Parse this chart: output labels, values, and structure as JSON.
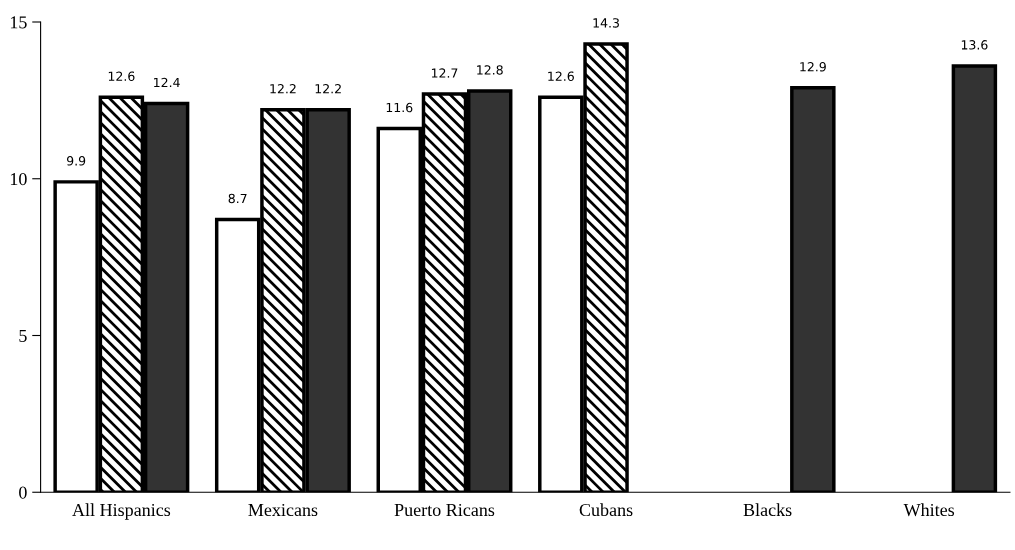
{
  "chart_data": {
    "type": "bar",
    "categories": [
      "All Hispanics",
      "Mexicans",
      "Puerto Ricans",
      "Cubans",
      "Blacks",
      "Whites"
    ],
    "series": [
      {
        "color": "#ffffff",
        "values": [
          9.9,
          8.7,
          11.6,
          12.6,
          null,
          null
        ]
      },
      {
        "color": "#000000",
        "values": [
          12.6,
          12.2,
          12.7,
          14.3,
          null,
          null
        ]
      },
      {
        "color": "#333333",
        "values": [
          12.4,
          12.2,
          12.8,
          null,
          12.9,
          13.6
        ]
      }
    ],
    "ylim": [
      0,
      15
    ],
    "yticks": [
      0,
      5,
      10,
      15
    ],
    "data_labels": true,
    "grid": false,
    "legend": false
  }
}
